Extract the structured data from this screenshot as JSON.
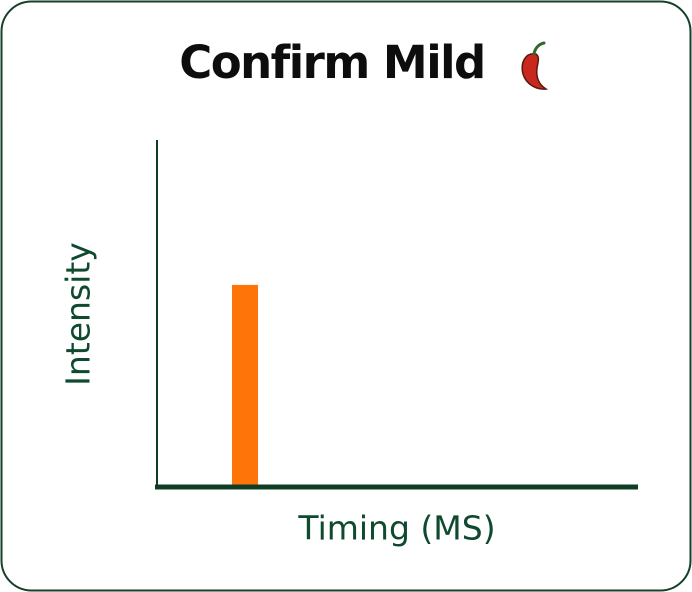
{
  "chart_data": {
    "type": "bar",
    "title": "Confirm Mild",
    "x_label": "Timing (MS)",
    "y_label": "Intensity",
    "categories": [
      null
    ],
    "values": [
      58
    ],
    "color": "#ff7409",
    "ylim": [
      0,
      100
    ]
  }
}
